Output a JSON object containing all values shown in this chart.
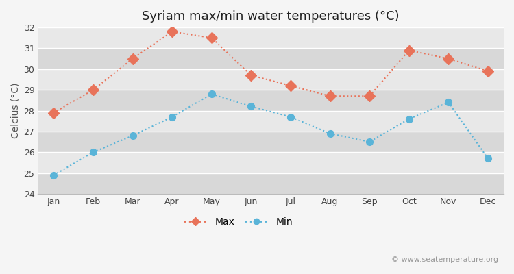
{
  "title": "Syriam max/min water temperatures (°C)",
  "ylabel": "Celcius (°C)",
  "months": [
    "Jan",
    "Feb",
    "Mar",
    "Apr",
    "May",
    "Jun",
    "Jul",
    "Aug",
    "Sep",
    "Oct",
    "Nov",
    "Dec"
  ],
  "max_temps": [
    27.9,
    29.0,
    30.5,
    31.8,
    31.5,
    29.7,
    29.2,
    28.7,
    28.7,
    30.9,
    30.5,
    29.9
  ],
  "min_temps": [
    24.9,
    26.0,
    26.8,
    27.7,
    28.8,
    28.2,
    27.7,
    26.9,
    26.5,
    27.6,
    28.4,
    25.7
  ],
  "max_color": "#e8735a",
  "min_color": "#5ab4d8",
  "fig_bg_color": "#f5f5f5",
  "plot_bg_color": "#e8e8e8",
  "band_color_dark": "#d8d8d8",
  "band_color_light": "#e8e8e8",
  "grid_color": "#ffffff",
  "ylim": [
    24,
    32
  ],
  "yticks": [
    24,
    25,
    26,
    27,
    28,
    29,
    30,
    31,
    32
  ],
  "watermark": "© www.seatemperature.org",
  "legend_max": "Max",
  "legend_min": "Min",
  "title_fontsize": 13,
  "label_fontsize": 10,
  "tick_fontsize": 9,
  "watermark_fontsize": 8,
  "line_width": 1.5,
  "marker_size_max": 8,
  "marker_size_min": 7
}
